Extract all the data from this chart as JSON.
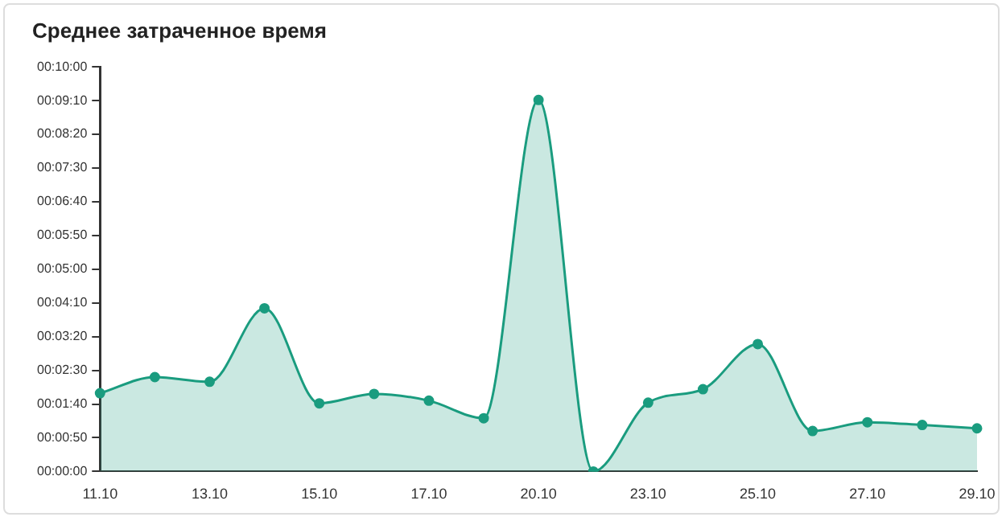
{
  "chart_data": {
    "type": "area",
    "title": "Среднее затраченное время",
    "categories": [
      "11.10",
      null,
      "13.10",
      null,
      "15.10",
      null,
      "17.10",
      null,
      "20.10",
      null,
      "23.10",
      null,
      "25.10",
      null,
      "27.10",
      null,
      "29.10"
    ],
    "series": [
      {
        "color": "#1a9c7f",
        "values": [
          116,
          140,
          133,
          242,
          101,
          115,
          105,
          79,
          551,
          0,
          102,
          122,
          189,
          60,
          73,
          69,
          64
        ]
      }
    ],
    "ylim": [
      0,
      600
    ],
    "yticks": [
      {
        "value": 0,
        "label": "00:00:00"
      },
      {
        "value": 50,
        "label": "00:00:50"
      },
      {
        "value": 100,
        "label": "00:01:40"
      },
      {
        "value": 150,
        "label": "00:02:30"
      },
      {
        "value": 200,
        "label": "00:03:20"
      },
      {
        "value": 250,
        "label": "00:04:10"
      },
      {
        "value": 300,
        "label": "00:05:00"
      },
      {
        "value": 350,
        "label": "00:05:50"
      },
      {
        "value": 400,
        "label": "00:06:40"
      },
      {
        "value": 450,
        "label": "00:07:30"
      },
      {
        "value": 500,
        "label": "00:08:20"
      },
      {
        "value": 550,
        "label": "00:09:10"
      },
      {
        "value": 600,
        "label": "00:10:00"
      }
    ],
    "grid": false,
    "legend": false,
    "marker": "circle"
  }
}
